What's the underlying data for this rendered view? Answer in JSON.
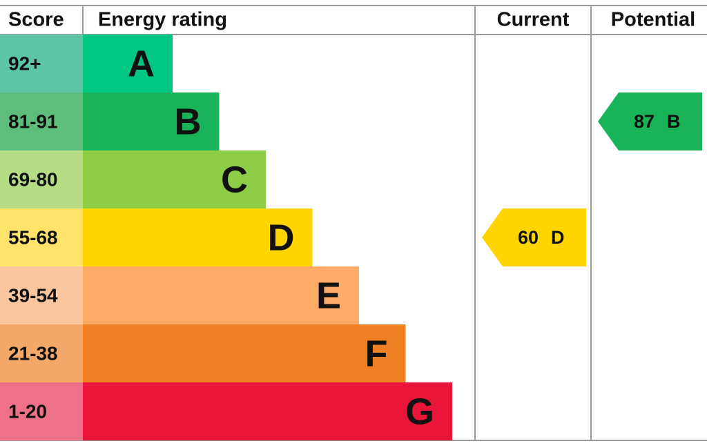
{
  "header": {
    "score": "Score",
    "rating": "Energy rating",
    "current": "Current",
    "potential": "Potential"
  },
  "bands": [
    {
      "score": "92+",
      "letter": "A",
      "color": "#00c781",
      "score_color": "#5ec4a6"
    },
    {
      "score": "81-91",
      "letter": "B",
      "color": "#19b459",
      "score_color": "#5dbd7d"
    },
    {
      "score": "69-80",
      "letter": "C",
      "color": "#8dce46",
      "score_color": "#b5db85"
    },
    {
      "score": "55-68",
      "letter": "D",
      "color": "#ffd500",
      "score_color": "#ffe36a"
    },
    {
      "score": "39-54",
      "letter": "E",
      "color": "#fcaa65",
      "score_color": "#fbc59d"
    },
    {
      "score": "21-38",
      "letter": "F",
      "color": "#ef8023",
      "score_color": "#f3a86a"
    },
    {
      "score": "1-20",
      "letter": "G",
      "color": "#e9153b",
      "score_color": "#ef7089"
    }
  ],
  "current": {
    "value": "60",
    "letter": "D"
  },
  "potential": {
    "value": "87",
    "letter": "B"
  }
}
